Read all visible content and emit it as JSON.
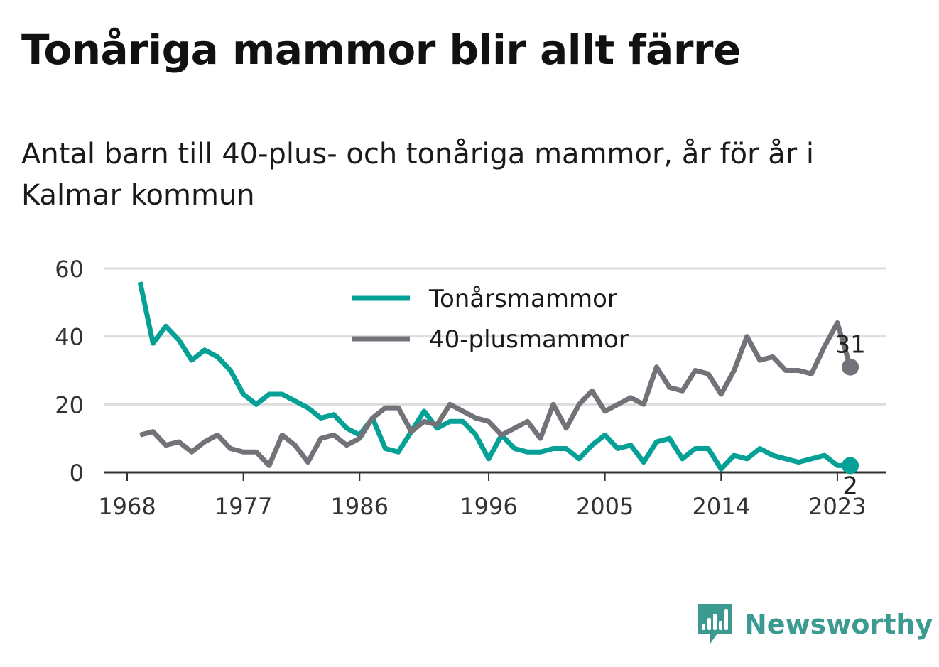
{
  "title": "Tonåriga mammor blir allt färre",
  "subtitle": "Antal barn till 40-plus- och tonåriga mammor, år för år i Kalmar kommun",
  "logo": {
    "text": "Newsworthy",
    "icon": "newsworthy-bars-icon"
  },
  "colors": {
    "teal": "#05a096",
    "gray": "#737279",
    "grid": "#dcdcdc",
    "axis": "#333333"
  },
  "chart_data": {
    "type": "line",
    "x": [
      1969,
      1970,
      1971,
      1972,
      1973,
      1974,
      1975,
      1976,
      1977,
      1978,
      1979,
      1980,
      1981,
      1982,
      1983,
      1984,
      1985,
      1986,
      1987,
      1988,
      1989,
      1990,
      1991,
      1992,
      1993,
      1994,
      1995,
      1996,
      1997,
      1998,
      1999,
      2000,
      2001,
      2002,
      2003,
      2004,
      2005,
      2006,
      2007,
      2008,
      2009,
      2010,
      2011,
      2012,
      2013,
      2014,
      2015,
      2016,
      2017,
      2018,
      2019,
      2020,
      2021,
      2022,
      2023,
      2024
    ],
    "series": [
      {
        "name": "Tonårsmammor",
        "color": "#05a096",
        "values": [
          56,
          38,
          43,
          39,
          33,
          36,
          34,
          30,
          23,
          20,
          23,
          23,
          21,
          19,
          16,
          17,
          13,
          11,
          16,
          7,
          6,
          12,
          18,
          13,
          15,
          15,
          11,
          4,
          11,
          7,
          6,
          6,
          7,
          7,
          4,
          8,
          11,
          7,
          8,
          3,
          9,
          10,
          4,
          7,
          7,
          1,
          5,
          4,
          7,
          5,
          4,
          3,
          4,
          5,
          2,
          2
        ],
        "end_label": "2"
      },
      {
        "name": "40-plusmammor",
        "color": "#737279",
        "values": [
          11,
          12,
          8,
          9,
          6,
          9,
          11,
          7,
          6,
          6,
          2,
          11,
          8,
          3,
          10,
          11,
          8,
          10,
          16,
          19,
          19,
          12,
          15,
          14,
          20,
          18,
          16,
          15,
          11,
          13,
          15,
          10,
          20,
          13,
          20,
          24,
          18,
          20,
          22,
          20,
          31,
          25,
          24,
          30,
          29,
          23,
          30,
          40,
          33,
          34,
          30,
          30,
          29,
          37,
          44,
          31
        ],
        "end_label": "31"
      }
    ],
    "xticks": [
      "1968",
      "1977",
      "1986",
      "1996",
      "2005",
      "2014",
      "2023"
    ],
    "xtick_values": [
      1968,
      1977,
      1986,
      1996,
      2005,
      2014,
      2023
    ],
    "yticks": [
      0,
      20,
      40,
      60
    ],
    "ylim": [
      0,
      60
    ],
    "xlim": [
      1968,
      2024
    ],
    "grid": true,
    "legend_position": "top-center"
  }
}
